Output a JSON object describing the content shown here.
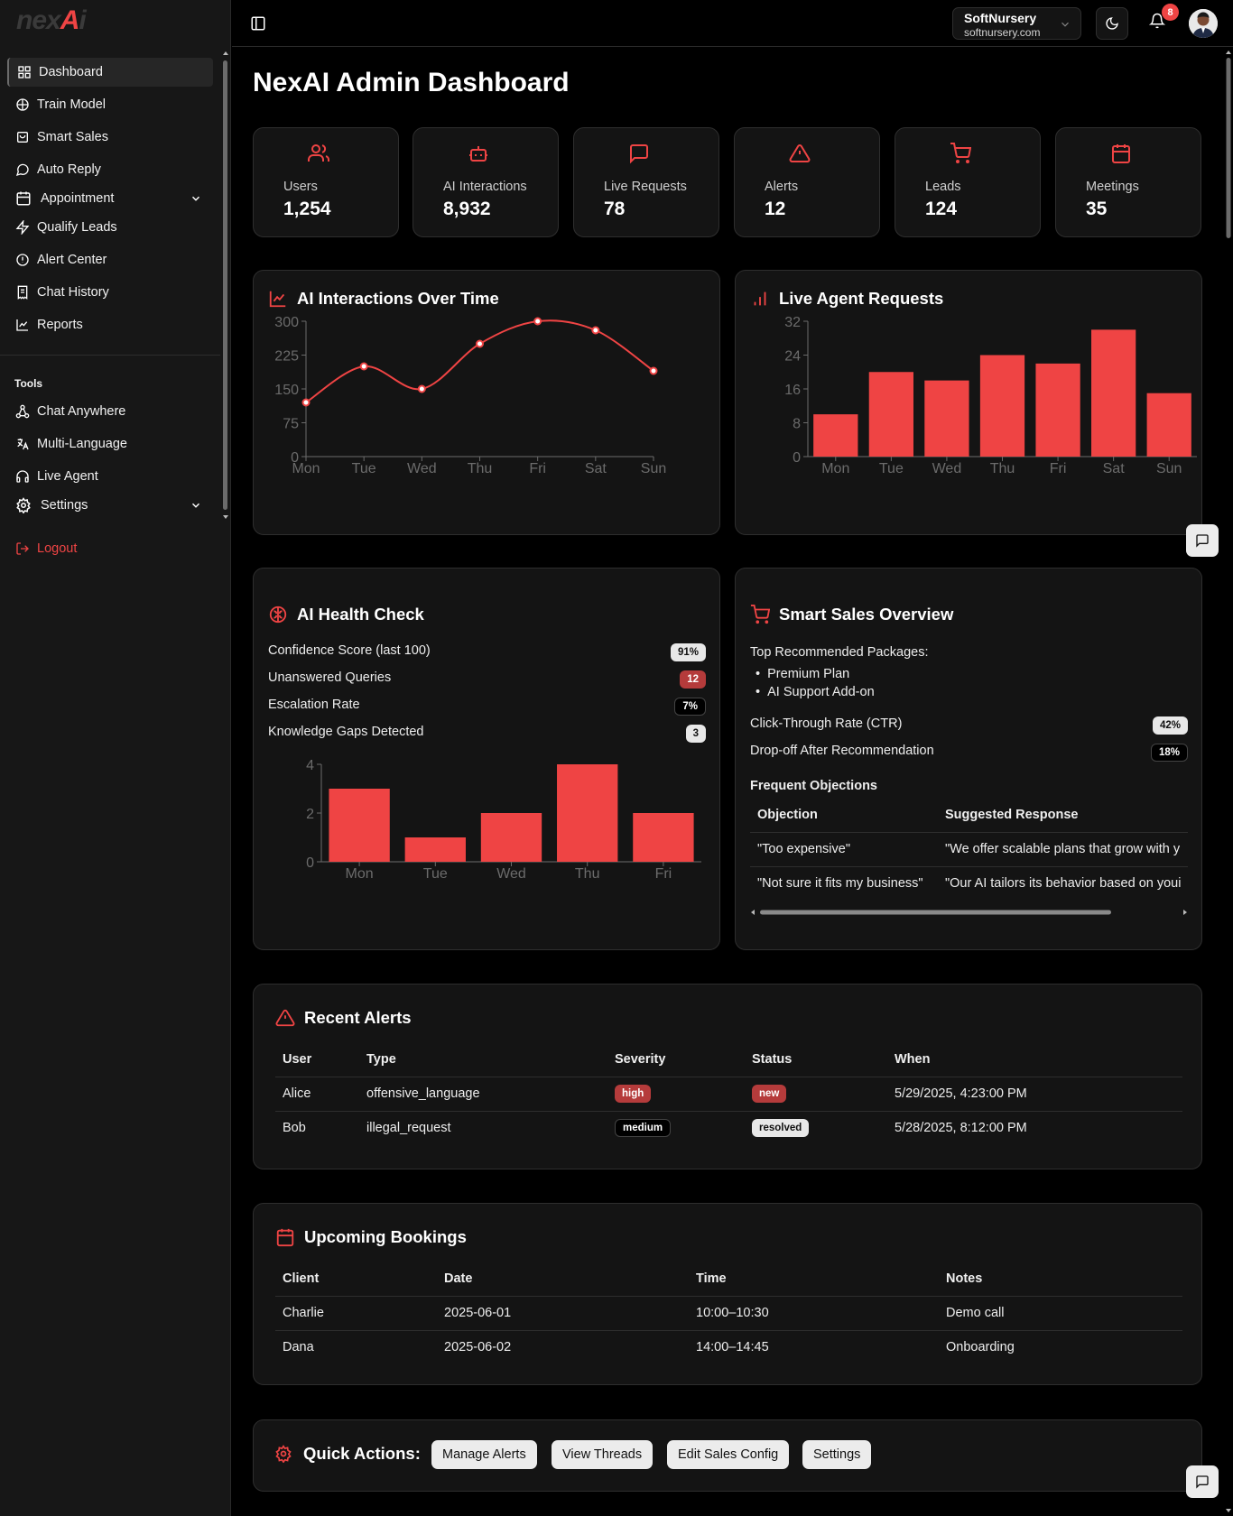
{
  "sidebar": {
    "logo_prefix": "nex",
    "logo_x": "A",
    "logo_suffix": "i",
    "items": [
      {
        "label": "Dashboard",
        "icon": "grid-icon"
      },
      {
        "label": "Train Model",
        "icon": "brain-icon"
      },
      {
        "label": "Smart Sales",
        "icon": "shopping-bag-icon"
      },
      {
        "label": "Auto Reply",
        "icon": "message-circle-icon"
      },
      {
        "label": "Appointment",
        "icon": "calendar-icon"
      },
      {
        "label": "Qualify Leads",
        "icon": "zap-icon"
      },
      {
        "label": "Alert Center",
        "icon": "alert-circle-icon"
      },
      {
        "label": "Chat History",
        "icon": "receipt-icon"
      },
      {
        "label": "Reports",
        "icon": "line-chart-icon"
      }
    ],
    "tools_label": "Tools",
    "tools": [
      {
        "label": "Chat Anywhere",
        "icon": "network-icon"
      },
      {
        "label": "Multi-Language",
        "icon": "languages-icon"
      },
      {
        "label": "Live Agent",
        "icon": "headphones-icon"
      },
      {
        "label": "Settings",
        "icon": "gear-icon"
      }
    ],
    "logout_label": "Logout"
  },
  "topbar": {
    "tenant_name": "SoftNursery",
    "tenant_domain": "softnursery.com",
    "notification_count": "8"
  },
  "page_title": "NexAI Admin Dashboard",
  "stats": [
    {
      "label": "Users",
      "value": "1,254",
      "icon": "users-icon"
    },
    {
      "label": "AI Interactions",
      "value": "8,932",
      "icon": "bot-icon"
    },
    {
      "label": "Live Requests",
      "value": "78",
      "icon": "message-square-icon"
    },
    {
      "label": "Alerts",
      "value": "12",
      "icon": "alert-triangle-icon"
    },
    {
      "label": "Leads",
      "value": "124",
      "icon": "shopping-cart-icon"
    },
    {
      "label": "Meetings",
      "value": "35",
      "icon": "calendar-icon"
    }
  ],
  "accent_color": "#ef4444",
  "ai_interactions": {
    "title": "AI Interactions Over Time"
  },
  "live_agent": {
    "title": "Live Agent Requests"
  },
  "health": {
    "title": "AI Health Check",
    "rows": [
      {
        "label": "Confidence Score (last 100)",
        "value": "91%"
      },
      {
        "label": "Unanswered Queries",
        "value": "12"
      },
      {
        "label": "Escalation Rate",
        "value": "7%"
      },
      {
        "label": "Knowledge Gaps Detected",
        "value": "3"
      }
    ]
  },
  "smart_sales": {
    "title": "Smart Sales Overview",
    "packages_label": "Top Recommended Packages:",
    "packages": [
      "Premium Plan",
      "AI Support Add-on"
    ],
    "ctr_label": "Click-Through Rate (CTR)",
    "ctr_value": "42%",
    "dropoff_label": "Drop-off After Recommendation",
    "dropoff_value": "18%",
    "objections_label": "Frequent Objections",
    "columns": [
      "Objection",
      "Suggested Response"
    ],
    "rows": [
      [
        "\"Too expensive\"",
        "\"We offer scalable plans that grow with y"
      ],
      [
        "\"Not sure it fits my business\"",
        "\"Our AI tailors its behavior based on youi"
      ]
    ]
  },
  "alerts": {
    "title": "Recent Alerts",
    "columns": [
      "User",
      "Type",
      "Severity",
      "Status",
      "When"
    ],
    "rows": [
      {
        "user": "Alice",
        "type": "offensive_language",
        "severity": "high",
        "status": "new",
        "when": "5/29/2025, 4:23:00 PM"
      },
      {
        "user": "Bob",
        "type": "illegal_request",
        "severity": "medium",
        "status": "resolved",
        "when": "5/28/2025, 8:12:00 PM"
      }
    ]
  },
  "bookings": {
    "title": "Upcoming Bookings",
    "columns": [
      "Client",
      "Date",
      "Time",
      "Notes"
    ],
    "rows": [
      {
        "client": "Charlie",
        "date": "2025-06-01",
        "time": "10:00–10:30",
        "notes": "Demo call"
      },
      {
        "client": "Dana",
        "date": "2025-06-02",
        "time": "14:00–14:45",
        "notes": "Onboarding"
      }
    ]
  },
  "quick_actions": {
    "title": "Quick Actions:",
    "buttons": [
      "Manage Alerts",
      "View Threads",
      "Edit Sales Config",
      "Settings"
    ]
  },
  "chart_data": [
    {
      "type": "line",
      "title": "AI Interactions Over Time",
      "categories": [
        "Mon",
        "Tue",
        "Wed",
        "Thu",
        "Fri",
        "Sat",
        "Sun"
      ],
      "values": [
        120,
        200,
        150,
        250,
        300,
        280,
        190
      ],
      "ylim": [
        0,
        300
      ],
      "yticks": [
        0,
        75,
        150,
        225,
        300
      ],
      "color": "#ef4444"
    },
    {
      "type": "bar",
      "title": "Live Agent Requests",
      "categories": [
        "Mon",
        "Tue",
        "Wed",
        "Thu",
        "Fri",
        "Sat",
        "Sun"
      ],
      "values": [
        10,
        20,
        18,
        24,
        22,
        30,
        15
      ],
      "ylim": [
        0,
        32
      ],
      "yticks": [
        0,
        8,
        16,
        24,
        32
      ],
      "color": "#ef4444"
    },
    {
      "type": "bar",
      "title": "",
      "categories": [
        "Mon",
        "Tue",
        "Wed",
        "Thu",
        "Fri"
      ],
      "values": [
        3,
        1,
        2,
        4,
        2
      ],
      "ylim": [
        0,
        4
      ],
      "yticks": [
        0,
        2,
        4
      ],
      "color": "#ef4444"
    }
  ]
}
